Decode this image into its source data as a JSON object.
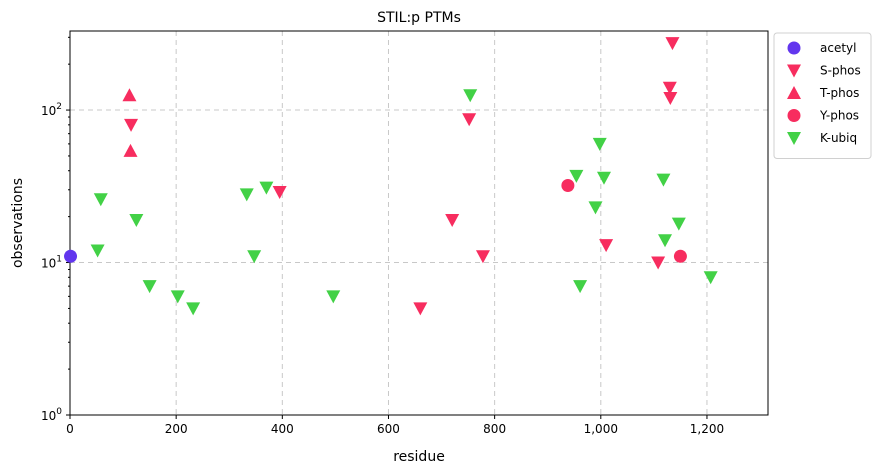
{
  "chart_data": {
    "type": "scatter",
    "title": "STIL:p PTMs",
    "xlabel": "residue",
    "ylabel": "observations",
    "xlim": [
      0,
      1315
    ],
    "ylim": [
      1,
      330
    ],
    "yscale": "log",
    "xticks": [
      0,
      200,
      400,
      600,
      800,
      1000,
      1200
    ],
    "xtick_labels": [
      "0",
      "200",
      "400",
      "600",
      "800",
      "1,000",
      "1,200"
    ],
    "yticks": [
      1,
      10,
      100
    ],
    "ytick_labels": [
      "10^0",
      "10^1",
      "10^2"
    ],
    "grid": true,
    "legend_position": "outside-top-right",
    "series": [
      {
        "name": "acetyl",
        "marker": "circle",
        "color": "#6236ee",
        "points": [
          [
            1,
            11
          ]
        ]
      },
      {
        "name": "S-phos",
        "marker": "triangle-down",
        "color": "#f72d5f",
        "points": [
          [
            115,
            80
          ],
          [
            395,
            29
          ],
          [
            660,
            5
          ],
          [
            720,
            19
          ],
          [
            752,
            87
          ],
          [
            778,
            11
          ],
          [
            1010,
            13
          ],
          [
            1108,
            10
          ],
          [
            1130,
            140
          ],
          [
            1131,
            120
          ],
          [
            1135,
            275
          ]
        ]
      },
      {
        "name": "T-phos",
        "marker": "triangle-up",
        "color": "#f72d5f",
        "points": [
          [
            112,
            125
          ],
          [
            114,
            54
          ]
        ]
      },
      {
        "name": "Y-phos",
        "marker": "circle",
        "color": "#f72d5f",
        "points": [
          [
            938,
            32
          ],
          [
            1150,
            11
          ]
        ]
      },
      {
        "name": "K-ubiq",
        "marker": "triangle-down",
        "color": "#42d146",
        "points": [
          [
            52,
            12
          ],
          [
            58,
            26
          ],
          [
            125,
            19
          ],
          [
            150,
            7
          ],
          [
            203,
            6
          ],
          [
            232,
            5
          ],
          [
            333,
            28
          ],
          [
            347,
            11
          ],
          [
            370,
            31
          ],
          [
            496,
            6
          ],
          [
            754,
            125
          ],
          [
            954,
            37
          ],
          [
            961,
            7
          ],
          [
            990,
            23
          ],
          [
            998,
            60
          ],
          [
            1006,
            36
          ],
          [
            1118,
            35
          ],
          [
            1121,
            14
          ],
          [
            1147,
            18
          ],
          [
            1207,
            8
          ]
        ]
      }
    ]
  }
}
